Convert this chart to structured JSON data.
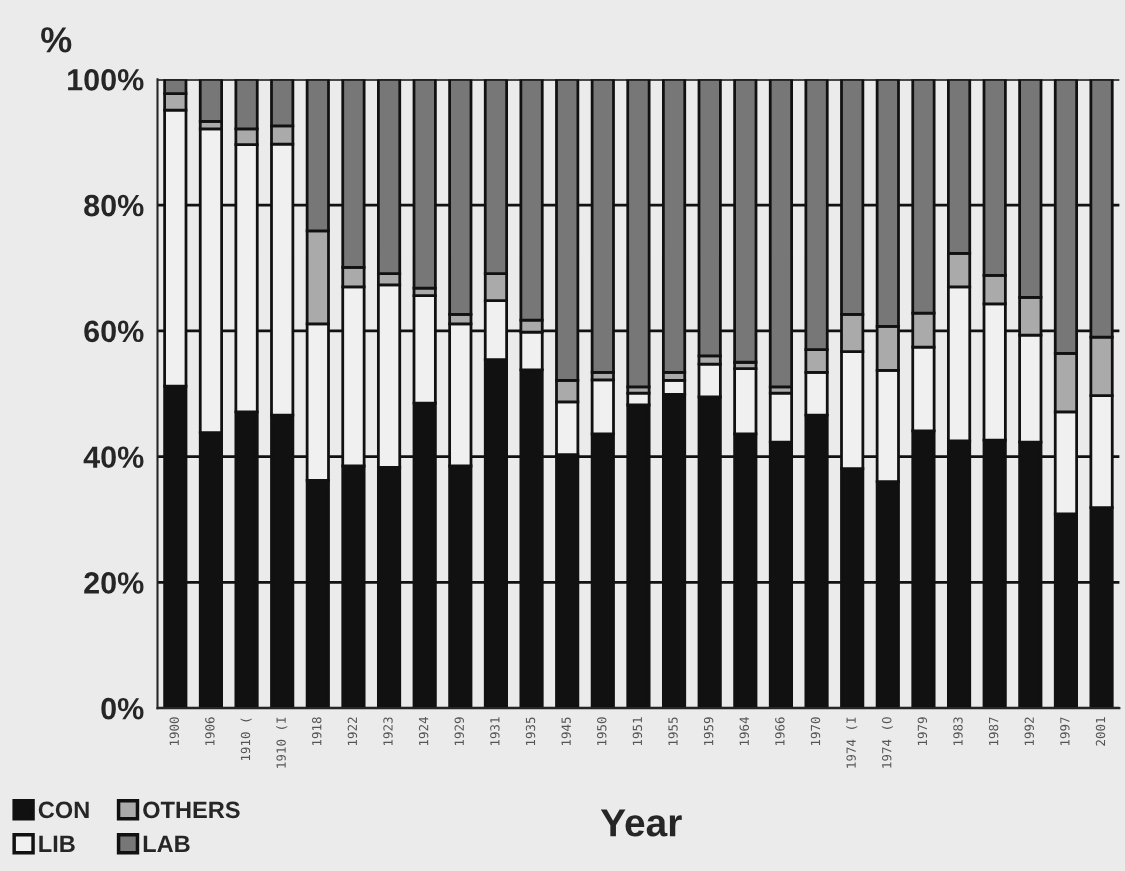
{
  "chart_data": {
    "type": "bar",
    "stacked": true,
    "ylabel": "%",
    "xlabel": "Year",
    "categories": [
      "1900",
      "1906",
      "1910 (",
      "1910 (I",
      "1918",
      "1922",
      "1923",
      "1924",
      "1929",
      "1931",
      "1935",
      "1945",
      "1950",
      "1951",
      "1955",
      "1959",
      "1964",
      "1966",
      "1970",
      "1974 (I",
      "1974 (O",
      "1979",
      "1983",
      "1987",
      "1992",
      "1997",
      "2001"
    ],
    "series": [
      {
        "name": "CON",
        "color": "#111111",
        "values": [
          51.2,
          43.8,
          47.1,
          46.6,
          36.2,
          38.5,
          38.3,
          48.5,
          38.5,
          55.4,
          53.8,
          40.3,
          43.6,
          48.2,
          49.9,
          49.5,
          43.6,
          42.3,
          46.6,
          38.1,
          36.0,
          44.1,
          42.5,
          42.6,
          42.3,
          30.9,
          31.9
        ]
      },
      {
        "name": "LIB",
        "color": "#f0f0f0",
        "values": [
          43.9,
          48.3,
          42.5,
          43.1,
          24.9,
          28.5,
          29.0,
          17.1,
          22.6,
          9.4,
          6.0,
          8.4,
          8.6,
          1.9,
          2.2,
          5.2,
          10.4,
          7.8,
          6.8,
          18.6,
          17.7,
          13.3,
          24.5,
          21.7,
          17.0,
          16.2,
          17.8
        ]
      },
      {
        "name": "OTHERS",
        "color": "#aaaaaa",
        "values": [
          2.6,
          1.2,
          2.5,
          2.9,
          14.8,
          3.1,
          1.8,
          1.2,
          1.5,
          4.3,
          1.9,
          3.4,
          1.2,
          1.0,
          1.3,
          1.3,
          1.0,
          1.0,
          3.6,
          5.9,
          7.0,
          5.4,
          5.3,
          4.5,
          6.0,
          9.3,
          9.3
        ]
      },
      {
        "name": "LAB",
        "color": "#777777",
        "values": [
          2.3,
          6.7,
          7.9,
          7.4,
          24.1,
          29.9,
          30.9,
          33.2,
          37.4,
          30.9,
          38.3,
          47.9,
          46.6,
          48.9,
          46.6,
          44.0,
          45.0,
          48.9,
          43.0,
          37.4,
          39.3,
          37.2,
          27.7,
          31.2,
          34.7,
          43.6,
          41.0
        ]
      }
    ],
    "ylim": [
      0,
      100
    ],
    "yticks": [
      {
        "value": 0,
        "label": "0%"
      },
      {
        "value": 20,
        "label": "20%"
      },
      {
        "value": 40,
        "label": "40%"
      },
      {
        "value": 60,
        "label": "60%"
      },
      {
        "value": 80,
        "label": "80%"
      },
      {
        "value": 100,
        "label": "100%"
      }
    ],
    "grid": "y",
    "legend": "bottom left"
  }
}
